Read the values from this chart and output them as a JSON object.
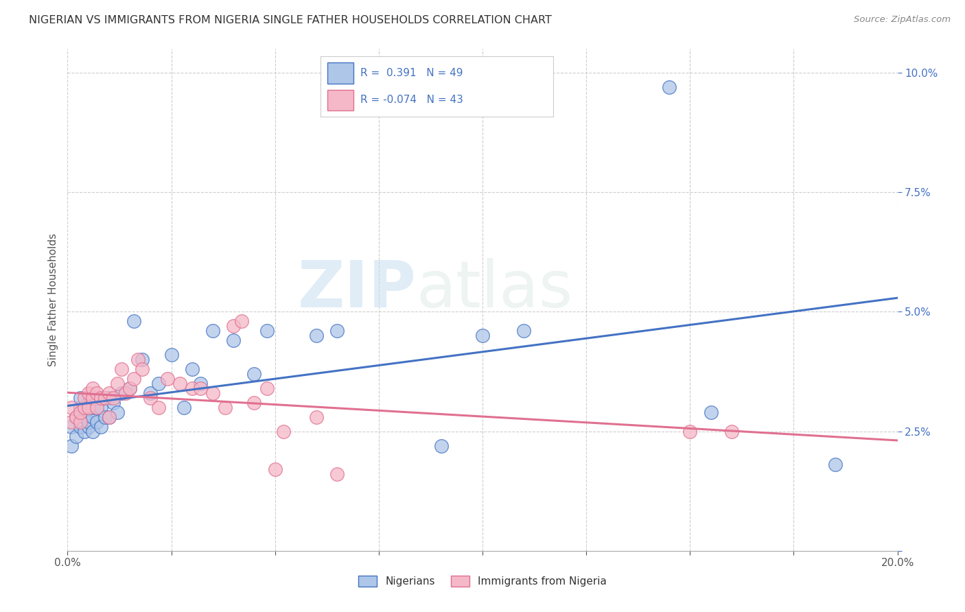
{
  "title": "NIGERIAN VS IMMIGRANTS FROM NIGERIA SINGLE FATHER HOUSEHOLDS CORRELATION CHART",
  "source": "Source: ZipAtlas.com",
  "ylabel": "Single Father Households",
  "legend_label1": "Nigerians",
  "legend_label2": "Immigrants from Nigeria",
  "R1": 0.391,
  "N1": 49,
  "R2": -0.074,
  "N2": 43,
  "color_blue": "#aec6e8",
  "color_pink": "#f5b8c8",
  "line_blue": "#4472c4",
  "line_pink": "#e07090",
  "text_blue": "#4472c4",
  "xlim": [
    0.0,
    0.2
  ],
  "ylim": [
    0.0,
    0.105
  ],
  "watermark_zip": "ZIP",
  "watermark_atlas": "atlas",
  "background_color": "#ffffff",
  "grid_color": "#c8c8c8",
  "blue_x": [
    0.001,
    0.001,
    0.002,
    0.002,
    0.003,
    0.003,
    0.003,
    0.004,
    0.004,
    0.004,
    0.005,
    0.005,
    0.005,
    0.006,
    0.006,
    0.006,
    0.007,
    0.007,
    0.007,
    0.008,
    0.008,
    0.009,
    0.009,
    0.01,
    0.01,
    0.011,
    0.012,
    0.013,
    0.015,
    0.016,
    0.018,
    0.02,
    0.022,
    0.025,
    0.028,
    0.03,
    0.032,
    0.035,
    0.04,
    0.045,
    0.048,
    0.06,
    0.065,
    0.09,
    0.1,
    0.11,
    0.145,
    0.155,
    0.185
  ],
  "blue_y": [
    0.022,
    0.026,
    0.024,
    0.028,
    0.026,
    0.03,
    0.032,
    0.025,
    0.028,
    0.03,
    0.026,
    0.027,
    0.031,
    0.025,
    0.028,
    0.03,
    0.027,
    0.03,
    0.032,
    0.026,
    0.03,
    0.028,
    0.032,
    0.028,
    0.032,
    0.031,
    0.029,
    0.033,
    0.034,
    0.048,
    0.04,
    0.033,
    0.035,
    0.041,
    0.03,
    0.038,
    0.035,
    0.046,
    0.044,
    0.037,
    0.046,
    0.045,
    0.046,
    0.022,
    0.045,
    0.046,
    0.097,
    0.029,
    0.018
  ],
  "pink_x": [
    0.001,
    0.001,
    0.002,
    0.003,
    0.003,
    0.004,
    0.004,
    0.005,
    0.005,
    0.006,
    0.006,
    0.007,
    0.007,
    0.008,
    0.009,
    0.01,
    0.01,
    0.011,
    0.012,
    0.013,
    0.014,
    0.015,
    0.016,
    0.017,
    0.018,
    0.02,
    0.022,
    0.024,
    0.027,
    0.03,
    0.032,
    0.035,
    0.038,
    0.04,
    0.042,
    0.045,
    0.048,
    0.05,
    0.052,
    0.06,
    0.065,
    0.15,
    0.16
  ],
  "pink_y": [
    0.027,
    0.03,
    0.028,
    0.027,
    0.029,
    0.03,
    0.032,
    0.03,
    0.033,
    0.032,
    0.034,
    0.03,
    0.033,
    0.032,
    0.032,
    0.028,
    0.033,
    0.032,
    0.035,
    0.038,
    0.033,
    0.034,
    0.036,
    0.04,
    0.038,
    0.032,
    0.03,
    0.036,
    0.035,
    0.034,
    0.034,
    0.033,
    0.03,
    0.047,
    0.048,
    0.031,
    0.034,
    0.017,
    0.025,
    0.028,
    0.016,
    0.025,
    0.025
  ]
}
